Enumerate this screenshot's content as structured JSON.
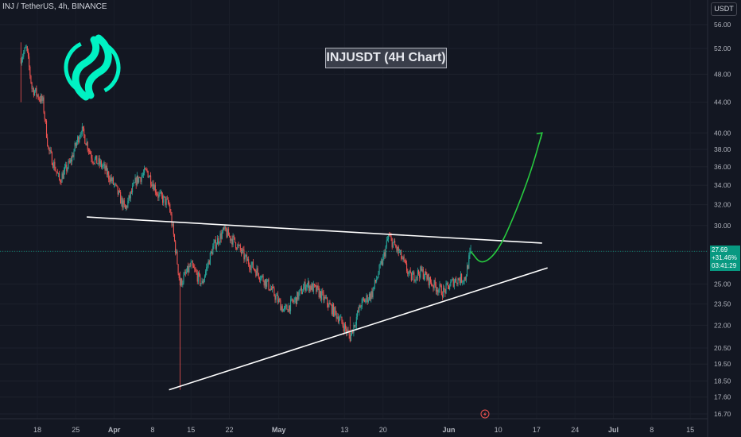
{
  "header": {
    "symbol_label": "INJ / TetherUS, 4h, BINANCE"
  },
  "title": "INJUSDT (4H Chart)",
  "currency": "USDT",
  "last_price": {
    "price": "27.69",
    "change": "+31.46%",
    "countdown": "03:41:29"
  },
  "colors": {
    "background": "#131722",
    "up": "#26a69a",
    "down": "#ef5350",
    "projection": "#27c93f",
    "trendline": "#ffffff",
    "logo": "#00f2c3"
  },
  "icons": [
    "logo-icon",
    "flash-icon"
  ],
  "chart_data": {
    "type": "candlestick",
    "title": "INJUSDT (4H Chart)",
    "scale": "log",
    "ylim": [
      16.2,
      60
    ],
    "y_ticks": [
      "56.00",
      "52.00",
      "48.00",
      "44.00",
      "40.00",
      "38.00",
      "36.00",
      "34.00",
      "32.00",
      "30.00",
      "27.69",
      "25.00",
      "23.50",
      "22.00",
      "20.50",
      "19.50",
      "18.50",
      "17.60",
      "16.70"
    ],
    "x_ticks": [
      "18",
      "25",
      "Apr",
      "8",
      "15",
      "22",
      "May",
      "13",
      "20",
      "Jun",
      "10",
      "17",
      "24",
      "Jul",
      "8",
      "15"
    ],
    "price_path": [
      {
        "date": "2024-03-15",
        "price": 50.5
      },
      {
        "date": "2024-03-16",
        "price": 52.0
      },
      {
        "date": "2024-03-17",
        "price": 46.0
      },
      {
        "date": "2024-03-19",
        "price": 44.0
      },
      {
        "date": "2024-03-20",
        "price": 38.0
      },
      {
        "date": "2024-03-22",
        "price": 34.5
      },
      {
        "date": "2024-03-24",
        "price": 36.5
      },
      {
        "date": "2024-03-26",
        "price": 40.5
      },
      {
        "date": "2024-03-28",
        "price": 37.0
      },
      {
        "date": "2024-03-30",
        "price": 36.0
      },
      {
        "date": "2024-04-01",
        "price": 34.0
      },
      {
        "date": "2024-04-03",
        "price": 31.5
      },
      {
        "date": "2024-04-05",
        "price": 34.5
      },
      {
        "date": "2024-04-07",
        "price": 35.5
      },
      {
        "date": "2024-04-09",
        "price": 33.0
      },
      {
        "date": "2024-04-11",
        "price": 32.0
      },
      {
        "date": "2024-04-13",
        "price": 25.0
      },
      {
        "date": "2024-04-15",
        "price": 26.5
      },
      {
        "date": "2024-04-17",
        "price": 25.0
      },
      {
        "date": "2024-04-19",
        "price": 28.0
      },
      {
        "date": "2024-04-21",
        "price": 29.5
      },
      {
        "date": "2024-04-23",
        "price": 28.5
      },
      {
        "date": "2024-04-25",
        "price": 27.0
      },
      {
        "date": "2024-04-27",
        "price": 26.0
      },
      {
        "date": "2024-04-29",
        "price": 25.0
      },
      {
        "date": "2024-05-02",
        "price": 23.0
      },
      {
        "date": "2024-05-04",
        "price": 23.8
      },
      {
        "date": "2024-05-06",
        "price": 25.0
      },
      {
        "date": "2024-05-08",
        "price": 24.5
      },
      {
        "date": "2024-05-10",
        "price": 23.5
      },
      {
        "date": "2024-05-12",
        "price": 22.5
      },
      {
        "date": "2024-05-14",
        "price": 21.2
      },
      {
        "date": "2024-05-16",
        "price": 23.5
      },
      {
        "date": "2024-05-18",
        "price": 24.3
      },
      {
        "date": "2024-05-20",
        "price": 27.0
      },
      {
        "date": "2024-05-21",
        "price": 29.0
      },
      {
        "date": "2024-05-23",
        "price": 27.5
      },
      {
        "date": "2024-05-25",
        "price": 25.5
      },
      {
        "date": "2024-05-27",
        "price": 26.0
      },
      {
        "date": "2024-05-29",
        "price": 25.0
      },
      {
        "date": "2024-05-31",
        "price": 24.4
      },
      {
        "date": "2024-06-02",
        "price": 25.3
      },
      {
        "date": "2024-06-04",
        "price": 25.5
      },
      {
        "date": "2024-06-05",
        "price": 27.69
      }
    ],
    "wicks": [
      {
        "date": "2024-03-15",
        "low": 44.0,
        "high": 53.0
      },
      {
        "date": "2024-04-13",
        "low": 18.0,
        "high": 26.0
      },
      {
        "date": "2024-05-14",
        "low": 21.0,
        "high": 22.6
      }
    ],
    "trendlines": [
      {
        "name": "descending-resistance",
        "points": [
          {
            "date": "2024-03-27",
            "price": 30.8
          },
          {
            "date": "2024-06-18",
            "price": 28.4
          }
        ]
      },
      {
        "name": "ascending-support",
        "points": [
          {
            "date": "2024-04-11",
            "price": 18.0
          },
          {
            "date": "2024-06-19",
            "price": 26.3
          }
        ]
      }
    ],
    "projection": [
      {
        "date": "2024-06-05",
        "price": 27.69
      },
      {
        "date": "2024-06-07",
        "price": 26.5
      },
      {
        "date": "2024-06-10",
        "price": 27.7
      },
      {
        "date": "2024-06-13",
        "price": 31.0
      },
      {
        "date": "2024-06-16",
        "price": 35.5
      },
      {
        "date": "2024-06-18",
        "price": 40.0
      }
    ],
    "current_price": 27.69
  }
}
